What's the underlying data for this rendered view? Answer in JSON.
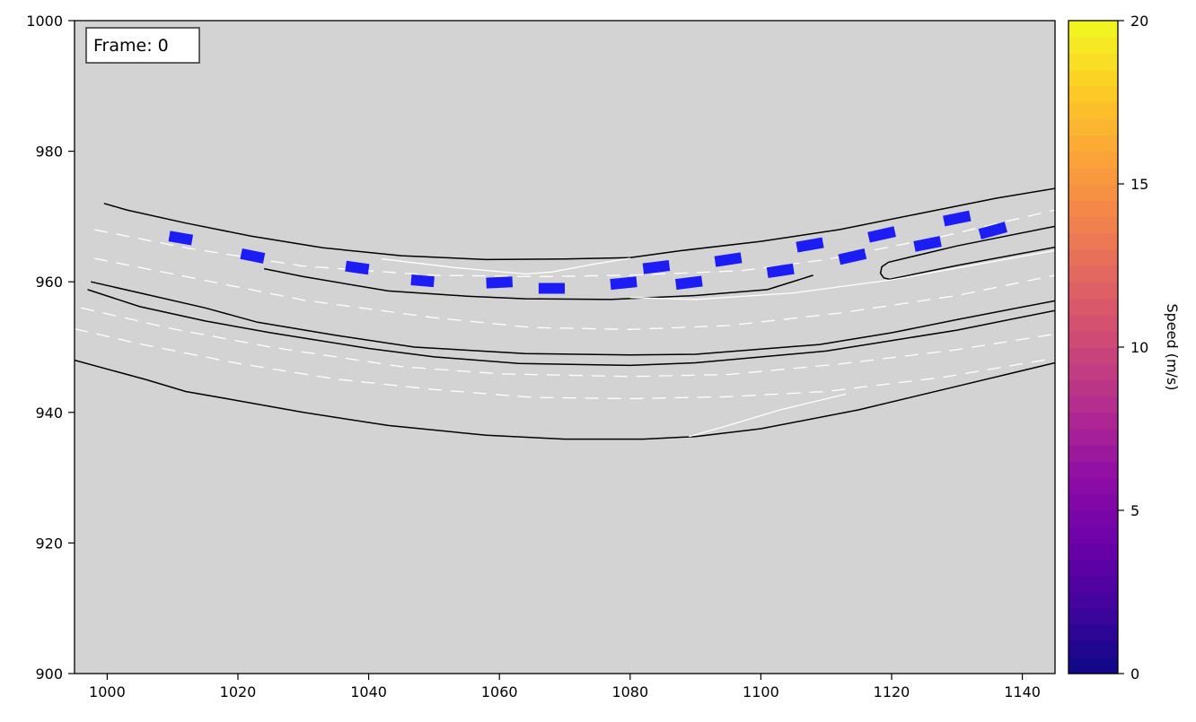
{
  "frame_label": "Frame: 0",
  "chart_data": {
    "type": "scatter",
    "title": "",
    "xlabel": "",
    "ylabel": "",
    "xlim": [
      995,
      1145
    ],
    "ylim": [
      900,
      1000
    ],
    "x_ticks": [
      1000,
      1020,
      1040,
      1060,
      1080,
      1100,
      1120,
      1140
    ],
    "y_ticks": [
      900,
      920,
      940,
      960,
      980,
      1000
    ],
    "background_color": "#d3d3d3",
    "grid": false,
    "colorbar": {
      "label": "Speed (m/s)",
      "range": [
        0,
        20
      ],
      "ticks": [
        0,
        5,
        10,
        15,
        20
      ],
      "colormap": "plasma"
    },
    "road_edges": [
      [
        [
          999.5,
          972
        ],
        [
          1003,
          971
        ],
        [
          1012,
          969
        ],
        [
          1022,
          967
        ],
        [
          1033,
          965.2
        ],
        [
          1045,
          964
        ],
        [
          1058,
          963.4
        ],
        [
          1070,
          963.5
        ],
        [
          1080,
          963.7
        ]
      ],
      [
        [
          1080,
          963.7
        ],
        [
          1088,
          964.8
        ],
        [
          1100,
          966.2
        ],
        [
          1112,
          968
        ],
        [
          1124,
          970.4
        ],
        [
          1136,
          972.8
        ],
        [
          1145,
          974.3
        ]
      ],
      [
        [
          1024,
          962
        ],
        [
          1030,
          960.8
        ],
        [
          1043,
          958.6
        ],
        [
          1055,
          957.8
        ],
        [
          1064,
          957.4
        ],
        [
          1077,
          957.3
        ],
        [
          1090,
          957.9
        ],
        [
          1101,
          958.8
        ],
        [
          1108,
          961
        ]
      ],
      [
        [
          997.5,
          960
        ],
        [
          1005,
          958.3
        ],
        [
          1015,
          956
        ],
        [
          1023,
          953.8
        ],
        [
          1035,
          951.8
        ],
        [
          1047,
          950
        ],
        [
          1064,
          949
        ],
        [
          1080,
          948.8
        ],
        [
          1090,
          948.9
        ],
        [
          1109,
          950.4
        ],
        [
          1120,
          952.2
        ],
        [
          1130,
          954.2
        ],
        [
          1145,
          957.1
        ]
      ],
      [
        [
          997,
          958.8
        ],
        [
          1005,
          956.2
        ],
        [
          1015,
          954
        ],
        [
          1025,
          952.2
        ],
        [
          1040,
          949.8
        ],
        [
          1050,
          948.5
        ],
        [
          1063,
          947.5
        ],
        [
          1080,
          947.2
        ],
        [
          1090,
          947.6
        ],
        [
          1110,
          949.4
        ],
        [
          1130,
          952.6
        ],
        [
          1145,
          955.6
        ]
      ],
      [
        [
          995,
          948
        ],
        [
          1006,
          945
        ],
        [
          1012,
          943.2
        ],
        [
          1020,
          941.8
        ],
        [
          1030,
          940
        ],
        [
          1043,
          938
        ],
        [
          1058,
          936.5
        ],
        [
          1070,
          935.9
        ],
        [
          1082,
          935.9
        ],
        [
          1090,
          936.3
        ],
        [
          1100,
          937.5
        ],
        [
          1115,
          940.4
        ],
        [
          1130,
          944
        ],
        [
          1145,
          947.6
        ]
      ],
      [
        [
          1145,
          968.5
        ],
        [
          1130,
          965.5
        ],
        [
          1119.5,
          963
        ],
        [
          1118.5,
          962.3
        ],
        [
          1118.3,
          961.3
        ],
        [
          1118.8,
          960.6
        ],
        [
          1119.7,
          960.4
        ],
        [
          1130,
          962.5
        ],
        [
          1145,
          965.3
        ]
      ]
    ],
    "white_solid_lines": [
      [
        [
          1042,
          963.5
        ],
        [
          1053,
          962.2
        ],
        [
          1064,
          961.2
        ],
        [
          1068,
          961.5
        ],
        [
          1075,
          962.8
        ],
        [
          1080,
          963.6
        ]
      ],
      [
        [
          1080,
          957.6
        ],
        [
          1090,
          957.3
        ],
        [
          1105,
          958.3
        ],
        [
          1120,
          960.3
        ],
        [
          1135,
          963
        ],
        [
          1145,
          964.8
        ]
      ],
      [
        [
          1089,
          936.3
        ],
        [
          1095,
          938
        ],
        [
          1103,
          940.4
        ],
        [
          1113,
          942.8
        ]
      ]
    ],
    "white_dashed_lines": [
      [
        [
          998,
          968
        ],
        [
          1012,
          965.2
        ],
        [
          1030,
          962.4
        ],
        [
          1050,
          961
        ],
        [
          1066,
          960.8
        ],
        [
          1080,
          961
        ],
        [
          1097,
          961.7
        ],
        [
          1110,
          963.4
        ],
        [
          1128,
          967
        ],
        [
          1145,
          971
        ]
      ],
      [
        [
          998,
          963.6
        ],
        [
          1015,
          960.2
        ],
        [
          1030,
          957.2
        ],
        [
          1050,
          954.5
        ],
        [
          1065,
          953
        ],
        [
          1080,
          952.7
        ],
        [
          1095,
          953.3
        ],
        [
          1112,
          955.2
        ],
        [
          1130,
          957.9
        ],
        [
          1145,
          961
        ]
      ],
      [
        [
          996,
          956
        ],
        [
          1010,
          952.8
        ],
        [
          1025,
          950
        ],
        [
          1045,
          947
        ],
        [
          1060,
          945.9
        ],
        [
          1080,
          945.5
        ],
        [
          1095,
          945.8
        ],
        [
          1112,
          947.4
        ],
        [
          1130,
          949.6
        ],
        [
          1145,
          952
        ]
      ],
      [
        [
          995,
          952.8
        ],
        [
          1005,
          950.5
        ],
        [
          1020,
          947.5
        ],
        [
          1035,
          945.1
        ],
        [
          1050,
          943.5
        ],
        [
          1065,
          942.3
        ],
        [
          1080,
          942.1
        ],
        [
          1095,
          942.4
        ],
        [
          1110,
          943.2
        ],
        [
          1128,
          945.4
        ],
        [
          1145,
          948.3
        ]
      ]
    ],
    "trajectory_segments": [
      [
        [
          1009.5,
          967
        ],
        [
          1013,
          966.4
        ]
      ],
      [
        [
          1020.5,
          964.3
        ],
        [
          1024,
          963.6
        ]
      ],
      [
        [
          1036.5,
          962.4
        ],
        [
          1040,
          961.9
        ]
      ],
      [
        [
          1046.5,
          960.3
        ],
        [
          1050,
          960
        ]
      ],
      [
        [
          1058,
          959.8
        ],
        [
          1062,
          960
        ]
      ],
      [
        [
          1066,
          959
        ],
        [
          1070,
          959
        ]
      ],
      [
        [
          1077,
          959.6
        ],
        [
          1081,
          960
        ]
      ],
      [
        [
          1082,
          962
        ],
        [
          1086,
          962.5
        ]
      ],
      [
        [
          1087,
          959.6
        ],
        [
          1091,
          960.1
        ]
      ],
      [
        [
          1093,
          963.1
        ],
        [
          1097,
          963.7
        ]
      ],
      [
        [
          1101,
          961.4
        ],
        [
          1105,
          962
        ]
      ],
      [
        [
          1105.5,
          965.3
        ],
        [
          1109.5,
          966
        ]
      ],
      [
        [
          1112,
          963.4
        ],
        [
          1116,
          964.3
        ]
      ],
      [
        [
          1116.5,
          966.8
        ],
        [
          1120.5,
          967.7
        ]
      ],
      [
        [
          1123.5,
          965.4
        ],
        [
          1127.5,
          966.2
        ]
      ],
      [
        [
          1128,
          969.3
        ],
        [
          1132,
          970.1
        ]
      ],
      [
        [
          1133.5,
          967.3
        ],
        [
          1137.5,
          968.4
        ]
      ]
    ],
    "trajectory_color": "#1c1cf5"
  }
}
